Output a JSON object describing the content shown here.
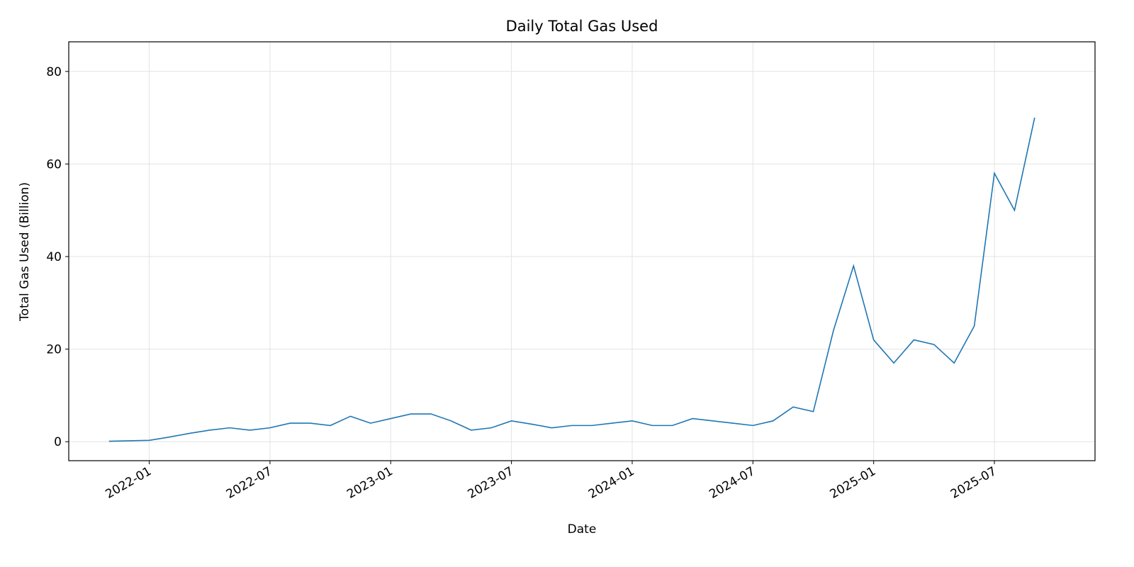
{
  "chart_data": {
    "type": "line",
    "title": "Daily Total Gas Used",
    "x_label": "Date",
    "y_label": "Total Gas Used (Billion)",
    "x": [
      "2021-11",
      "2021-12",
      "2022-01",
      "2022-02",
      "2022-03",
      "2022-04",
      "2022-05",
      "2022-06",
      "2022-07",
      "2022-08",
      "2022-09",
      "2022-10",
      "2022-11",
      "2022-12",
      "2023-01",
      "2023-02",
      "2023-03",
      "2023-04",
      "2023-05",
      "2023-06",
      "2023-07",
      "2023-08",
      "2023-09",
      "2023-10",
      "2023-11",
      "2023-12",
      "2024-01",
      "2024-02",
      "2024-03",
      "2024-04",
      "2024-05",
      "2024-06",
      "2024-07",
      "2024-08",
      "2024-09",
      "2024-10",
      "2024-11",
      "2024-12",
      "2025-01",
      "2025-02",
      "2025-03",
      "2025-04",
      "2025-05",
      "2025-06",
      "2025-07",
      "2025-08",
      "2025-09"
    ],
    "series": [
      {
        "name": "Total Gas Used",
        "color": "#1f77b4",
        "values": [
          0.1,
          0.2,
          0.3,
          1.0,
          1.8,
          2.5,
          3.0,
          2.5,
          3.0,
          4.0,
          4.0,
          3.5,
          5.5,
          4.0,
          5.0,
          6.0,
          6.0,
          4.5,
          2.5,
          3.0,
          4.5,
          3.8,
          3.0,
          3.5,
          3.5,
          4.0,
          4.5,
          3.5,
          3.5,
          5.0,
          4.5,
          4.0,
          3.5,
          4.5,
          7.5,
          6.5,
          24,
          38,
          22,
          17,
          22,
          21,
          17,
          25,
          58,
          50,
          70
        ]
      }
    ],
    "xlim": [
      "2021-09",
      "2025-12"
    ],
    "xticks": [
      "2022-01",
      "2022-07",
      "2023-01",
      "2023-07",
      "2024-01",
      "2024-07",
      "2025-01",
      "2025-07"
    ],
    "ylim": [
      -4.1,
      86.4
    ],
    "yticks": [
      0,
      20,
      40,
      60,
      80
    ],
    "grid": true
  }
}
